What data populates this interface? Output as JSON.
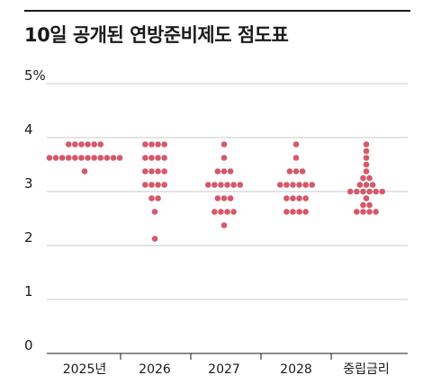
{
  "title": "10일 공개된 연방준비제도 점도표",
  "chart_data": {
    "type": "scatter",
    "title": "10일 공개된 연방준비제도 점도표",
    "ylim": [
      0,
      5
    ],
    "yticks": [
      {
        "value": 0,
        "label": "0"
      },
      {
        "value": 1,
        "label": "1"
      },
      {
        "value": 2,
        "label": "2"
      },
      {
        "value": 3,
        "label": "3"
      },
      {
        "value": 4,
        "label": "4"
      },
      {
        "value": 5,
        "label": "5%"
      }
    ],
    "grid": true,
    "categories": [
      "2025년",
      "2026",
      "2027",
      "2028",
      "중립금리"
    ],
    "dot_color": "#d6586a",
    "rows": [
      [
        {
          "y": 3.875,
          "count": 6
        },
        {
          "y": 3.625,
          "count": 12
        },
        {
          "y": 3.375,
          "count": 1
        }
      ],
      [
        {
          "y": 3.875,
          "count": 4
        },
        {
          "y": 3.625,
          "count": 4
        },
        {
          "y": 3.375,
          "count": 4
        },
        {
          "y": 3.125,
          "count": 4
        },
        {
          "y": 2.875,
          "count": 2
        },
        {
          "y": 2.625,
          "count": 1
        },
        {
          "y": 2.125,
          "count": 1
        }
      ],
      [
        {
          "y": 3.875,
          "count": 1
        },
        {
          "y": 3.625,
          "count": 1
        },
        {
          "y": 3.375,
          "count": 3
        },
        {
          "y": 3.125,
          "count": 6
        },
        {
          "y": 2.875,
          "count": 3
        },
        {
          "y": 2.625,
          "count": 4
        },
        {
          "y": 2.375,
          "count": 1
        }
      ],
      [
        {
          "y": 3.875,
          "count": 1
        },
        {
          "y": 3.625,
          "count": 1
        },
        {
          "y": 3.375,
          "count": 3
        },
        {
          "y": 3.125,
          "count": 6
        },
        {
          "y": 2.875,
          "count": 4
        },
        {
          "y": 2.625,
          "count": 4
        }
      ],
      [
        {
          "y": 3.875,
          "count": 1
        },
        {
          "y": 3.75,
          "count": 1
        },
        {
          "y": 3.625,
          "count": 1
        },
        {
          "y": 3.5,
          "count": 1
        },
        {
          "y": 3.375,
          "count": 1
        },
        {
          "y": 3.25,
          "count": 2
        },
        {
          "y": 3.125,
          "count": 3
        },
        {
          "y": 3.0,
          "count": 6
        },
        {
          "y": 2.875,
          "count": 1
        },
        {
          "y": 2.75,
          "count": 2
        },
        {
          "y": 2.625,
          "count": 4
        }
      ]
    ]
  }
}
